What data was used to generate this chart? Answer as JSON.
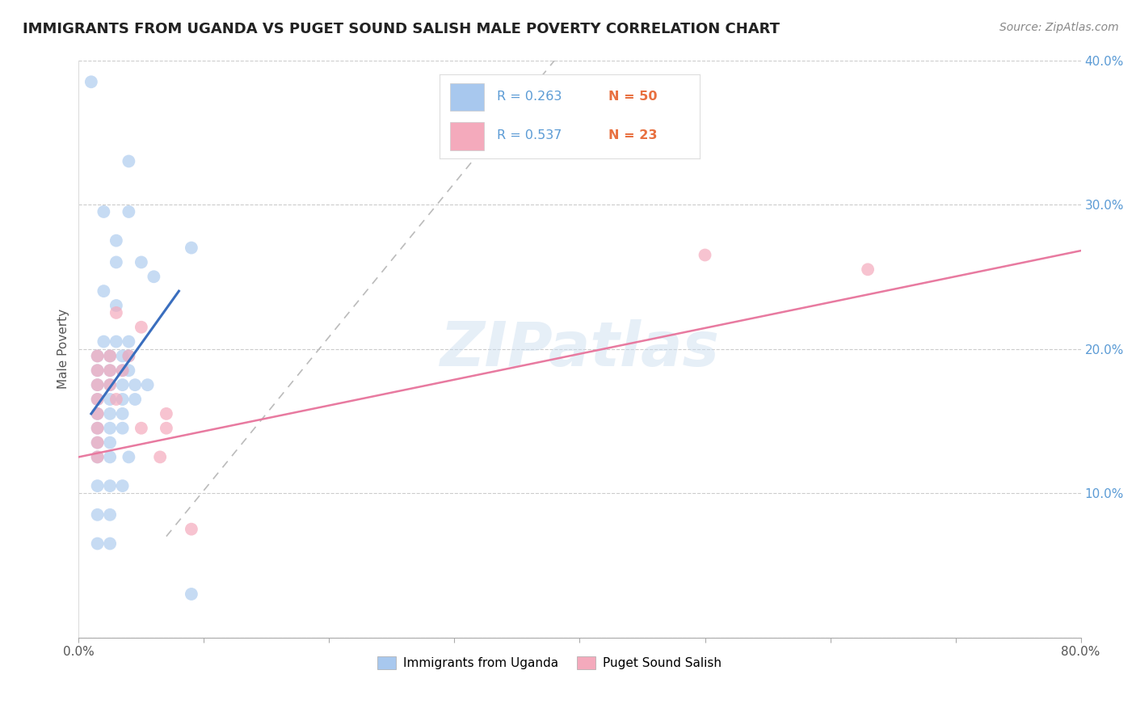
{
  "title": "IMMIGRANTS FROM UGANDA VS PUGET SOUND SALISH MALE POVERTY CORRELATION CHART",
  "source": "Source: ZipAtlas.com",
  "ylabel": "Male Poverty",
  "xlim": [
    0,
    0.8
  ],
  "ylim": [
    0,
    0.4
  ],
  "watermark": "ZIPatlas",
  "blue_color": "#A8C8EE",
  "pink_color": "#F4AABC",
  "blue_line_color": "#3A6EBE",
  "pink_line_color": "#E87AA0",
  "dash_line_color": "#BBBBBB",
  "grid_color": "#CCCCCC",
  "blue_scatter": [
    [
      0.01,
      0.385
    ],
    [
      0.04,
      0.33
    ],
    [
      0.09,
      0.27
    ],
    [
      0.02,
      0.295
    ],
    [
      0.04,
      0.295
    ],
    [
      0.03,
      0.275
    ],
    [
      0.03,
      0.26
    ],
    [
      0.05,
      0.26
    ],
    [
      0.06,
      0.25
    ],
    [
      0.02,
      0.24
    ],
    [
      0.03,
      0.23
    ],
    [
      0.02,
      0.205
    ],
    [
      0.03,
      0.205
    ],
    [
      0.04,
      0.205
    ],
    [
      0.015,
      0.195
    ],
    [
      0.025,
      0.195
    ],
    [
      0.035,
      0.195
    ],
    [
      0.04,
      0.195
    ],
    [
      0.015,
      0.185
    ],
    [
      0.025,
      0.185
    ],
    [
      0.035,
      0.185
    ],
    [
      0.04,
      0.185
    ],
    [
      0.015,
      0.175
    ],
    [
      0.025,
      0.175
    ],
    [
      0.035,
      0.175
    ],
    [
      0.045,
      0.175
    ],
    [
      0.055,
      0.175
    ],
    [
      0.015,
      0.165
    ],
    [
      0.025,
      0.165
    ],
    [
      0.035,
      0.165
    ],
    [
      0.045,
      0.165
    ],
    [
      0.015,
      0.155
    ],
    [
      0.025,
      0.155
    ],
    [
      0.035,
      0.155
    ],
    [
      0.015,
      0.145
    ],
    [
      0.025,
      0.145
    ],
    [
      0.035,
      0.145
    ],
    [
      0.015,
      0.135
    ],
    [
      0.025,
      0.135
    ],
    [
      0.015,
      0.125
    ],
    [
      0.025,
      0.125
    ],
    [
      0.04,
      0.125
    ],
    [
      0.015,
      0.105
    ],
    [
      0.025,
      0.105
    ],
    [
      0.035,
      0.105
    ],
    [
      0.015,
      0.085
    ],
    [
      0.025,
      0.085
    ],
    [
      0.015,
      0.065
    ],
    [
      0.025,
      0.065
    ],
    [
      0.09,
      0.03
    ]
  ],
  "pink_scatter": [
    [
      0.03,
      0.225
    ],
    [
      0.05,
      0.215
    ],
    [
      0.015,
      0.195
    ],
    [
      0.025,
      0.195
    ],
    [
      0.04,
      0.195
    ],
    [
      0.015,
      0.185
    ],
    [
      0.025,
      0.185
    ],
    [
      0.035,
      0.185
    ],
    [
      0.015,
      0.175
    ],
    [
      0.025,
      0.175
    ],
    [
      0.015,
      0.165
    ],
    [
      0.03,
      0.165
    ],
    [
      0.015,
      0.155
    ],
    [
      0.07,
      0.155
    ],
    [
      0.015,
      0.145
    ],
    [
      0.05,
      0.145
    ],
    [
      0.07,
      0.145
    ],
    [
      0.015,
      0.135
    ],
    [
      0.015,
      0.125
    ],
    [
      0.065,
      0.125
    ],
    [
      0.5,
      0.265
    ],
    [
      0.63,
      0.255
    ],
    [
      0.09,
      0.075
    ]
  ],
  "pink_line_x0": 0.0,
  "pink_line_y0": 0.125,
  "pink_line_x1": 0.8,
  "pink_line_y1": 0.268,
  "blue_line_x0": 0.01,
  "blue_line_y0": 0.155,
  "blue_line_x1": 0.08,
  "blue_line_y1": 0.24,
  "dash_line_x0": 0.07,
  "dash_line_y0": 0.07,
  "dash_line_x1": 0.38,
  "dash_line_y1": 0.4
}
